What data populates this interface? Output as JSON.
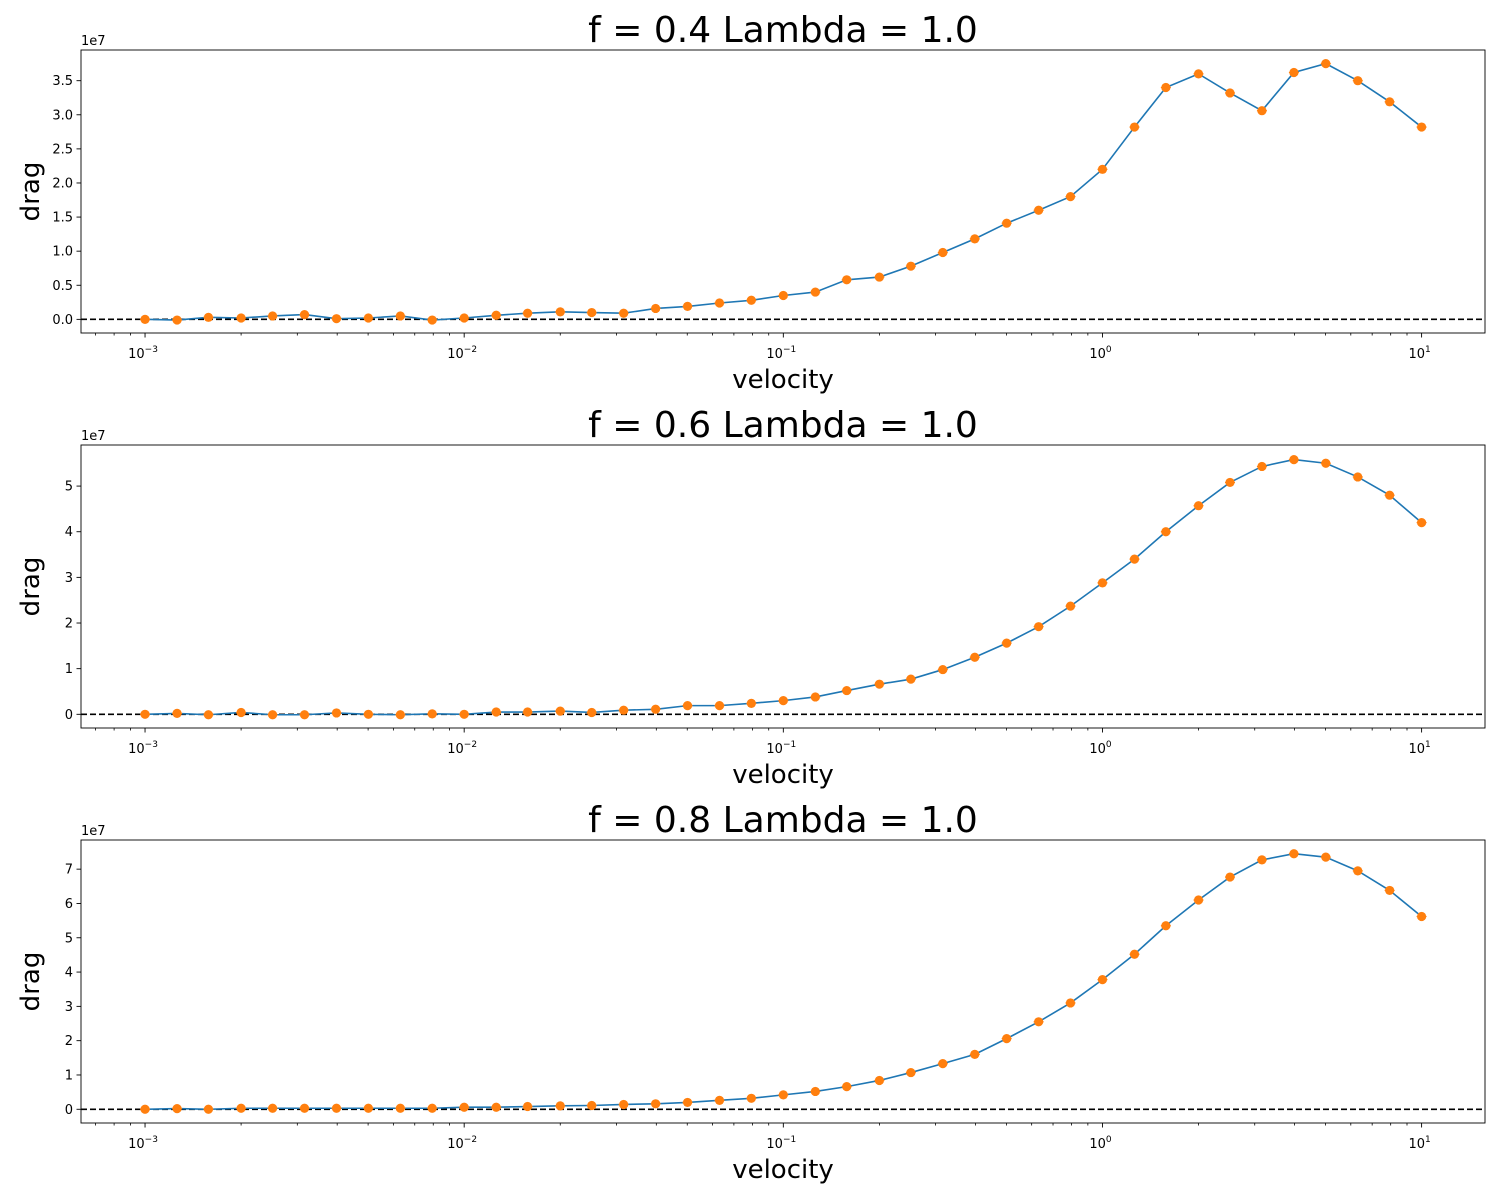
{
  "figure": {
    "colors": {
      "line": "#1f77b4",
      "marker": "#ff7f0e",
      "reference": "#000000",
      "spine": "#000000"
    }
  },
  "chart_data": [
    {
      "type": "line",
      "title": "f = 0.4 Lambda = 1.0",
      "xlabel": "velocity",
      "ylabel": "drag",
      "xscale": "log",
      "xlim": [
        0.00063,
        15.8
      ],
      "xticks": [
        0.001,
        0.01,
        0.1,
        1,
        10
      ],
      "xtick_labels": [
        {
          "base": "10",
          "exp": "−3"
        },
        {
          "base": "10",
          "exp": "−2"
        },
        {
          "base": "10",
          "exp": "−1"
        },
        {
          "base": "10",
          "exp": "0"
        },
        {
          "base": "10",
          "exp": "1"
        }
      ],
      "ylim": [
        -0.2,
        3.95
      ],
      "yticks": [
        0.0,
        0.5,
        1.0,
        1.5,
        2.0,
        2.5,
        3.0,
        3.5
      ],
      "ytick_labels": [
        "0.0",
        "0.5",
        "1.0",
        "1.5",
        "2.0",
        "2.5",
        "3.0",
        "3.5"
      ],
      "y_offset_text": "1e7",
      "reference_line_y": 0,
      "grid": false,
      "series": [
        {
          "x": [
            0.001,
            0.00126,
            0.00158,
            0.002,
            0.00251,
            0.00316,
            0.00398,
            0.00501,
            0.00631,
            0.00794,
            0.01,
            0.0126,
            0.0158,
            0.02,
            0.0251,
            0.0316,
            0.0398,
            0.0501,
            0.0631,
            0.0794,
            0.1,
            0.126,
            0.158,
            0.2,
            0.251,
            0.316,
            0.398,
            0.501,
            0.631,
            0.794,
            1.0,
            1.26,
            1.58,
            2.0,
            2.51,
            3.16,
            3.98,
            5.01,
            6.31,
            7.94,
            10.0
          ],
          "y": [
            0.0,
            -0.01,
            0.03,
            0.02,
            0.05,
            0.07,
            0.01,
            0.02,
            0.05,
            -0.01,
            0.02,
            0.06,
            0.09,
            0.11,
            0.1,
            0.09,
            0.16,
            0.19,
            0.24,
            0.28,
            0.35,
            0.4,
            0.58,
            0.62,
            0.78,
            0.98,
            1.18,
            1.41,
            1.6,
            1.8,
            2.2,
            2.82,
            3.4,
            3.6,
            3.32,
            3.06,
            3.62,
            3.75,
            3.5,
            3.19,
            2.82
          ]
        }
      ]
    },
    {
      "type": "line",
      "title": "f = 0.6 Lambda = 1.0",
      "xlabel": "velocity",
      "ylabel": "drag",
      "xscale": "log",
      "xlim": [
        0.00063,
        15.8
      ],
      "xticks": [
        0.001,
        0.01,
        0.1,
        1,
        10
      ],
      "xtick_labels": [
        {
          "base": "10",
          "exp": "−3"
        },
        {
          "base": "10",
          "exp": "−2"
        },
        {
          "base": "10",
          "exp": "−1"
        },
        {
          "base": "10",
          "exp": "0"
        },
        {
          "base": "10",
          "exp": "1"
        }
      ],
      "ylim": [
        -0.3,
        5.9
      ],
      "yticks": [
        0,
        1,
        2,
        3,
        4,
        5
      ],
      "ytick_labels": [
        "0",
        "1",
        "2",
        "3",
        "4",
        "5"
      ],
      "y_offset_text": "1e7",
      "reference_line_y": 0,
      "grid": false,
      "series": [
        {
          "x": [
            0.001,
            0.00126,
            0.00158,
            0.002,
            0.00251,
            0.00316,
            0.00398,
            0.00501,
            0.00631,
            0.00794,
            0.01,
            0.0126,
            0.0158,
            0.02,
            0.0251,
            0.0316,
            0.0398,
            0.0501,
            0.0631,
            0.0794,
            0.1,
            0.126,
            0.158,
            0.2,
            0.251,
            0.316,
            0.398,
            0.501,
            0.631,
            0.794,
            1.0,
            1.26,
            1.58,
            2.0,
            2.51,
            3.16,
            3.98,
            5.01,
            6.31,
            7.94,
            10.0
          ],
          "y": [
            0.0,
            0.02,
            -0.01,
            0.04,
            -0.01,
            -0.01,
            0.03,
            0.0,
            -0.01,
            0.01,
            0.0,
            0.05,
            0.05,
            0.07,
            0.04,
            0.09,
            0.11,
            0.19,
            0.19,
            0.24,
            0.3,
            0.38,
            0.52,
            0.66,
            0.77,
            0.98,
            1.25,
            1.56,
            1.92,
            2.37,
            2.88,
            3.4,
            4.0,
            4.57,
            5.08,
            5.43,
            5.58,
            5.5,
            5.2,
            4.8,
            4.2
          ]
        }
      ]
    },
    {
      "type": "line",
      "title": "f = 0.8 Lambda = 1.0",
      "xlabel": "velocity",
      "ylabel": "drag",
      "xscale": "log",
      "xlim": [
        0.00063,
        15.8
      ],
      "xticks": [
        0.001,
        0.01,
        0.1,
        1,
        10
      ],
      "xtick_labels": [
        {
          "base": "10",
          "exp": "−3"
        },
        {
          "base": "10",
          "exp": "−2"
        },
        {
          "base": "10",
          "exp": "−1"
        },
        {
          "base": "10",
          "exp": "0"
        },
        {
          "base": "10",
          "exp": "1"
        }
      ],
      "ylim": [
        -0.4,
        7.85
      ],
      "yticks": [
        0,
        1,
        2,
        3,
        4,
        5,
        6,
        7
      ],
      "ytick_labels": [
        "0",
        "1",
        "2",
        "3",
        "4",
        "5",
        "6",
        "7"
      ],
      "y_offset_text": "1e7",
      "reference_line_y": 0,
      "grid": false,
      "series": [
        {
          "x": [
            0.001,
            0.00126,
            0.00158,
            0.002,
            0.00251,
            0.00316,
            0.00398,
            0.00501,
            0.00631,
            0.00794,
            0.01,
            0.0126,
            0.0158,
            0.02,
            0.0251,
            0.0316,
            0.0398,
            0.0501,
            0.0631,
            0.0794,
            0.1,
            0.126,
            0.158,
            0.2,
            0.251,
            0.316,
            0.398,
            0.501,
            0.631,
            0.794,
            1.0,
            1.26,
            1.58,
            2.0,
            2.51,
            3.16,
            3.98,
            5.01,
            6.31,
            7.94,
            10.0
          ],
          "y": [
            0.0,
            0.02,
            0.0,
            0.03,
            0.03,
            0.03,
            0.03,
            0.03,
            0.03,
            0.03,
            0.06,
            0.06,
            0.08,
            0.1,
            0.11,
            0.14,
            0.16,
            0.2,
            0.26,
            0.32,
            0.42,
            0.52,
            0.66,
            0.84,
            1.07,
            1.33,
            1.6,
            2.06,
            2.55,
            3.1,
            3.78,
            4.52,
            5.35,
            6.1,
            6.77,
            7.27,
            7.45,
            7.35,
            6.95,
            6.38,
            5.62
          ]
        }
      ]
    }
  ]
}
